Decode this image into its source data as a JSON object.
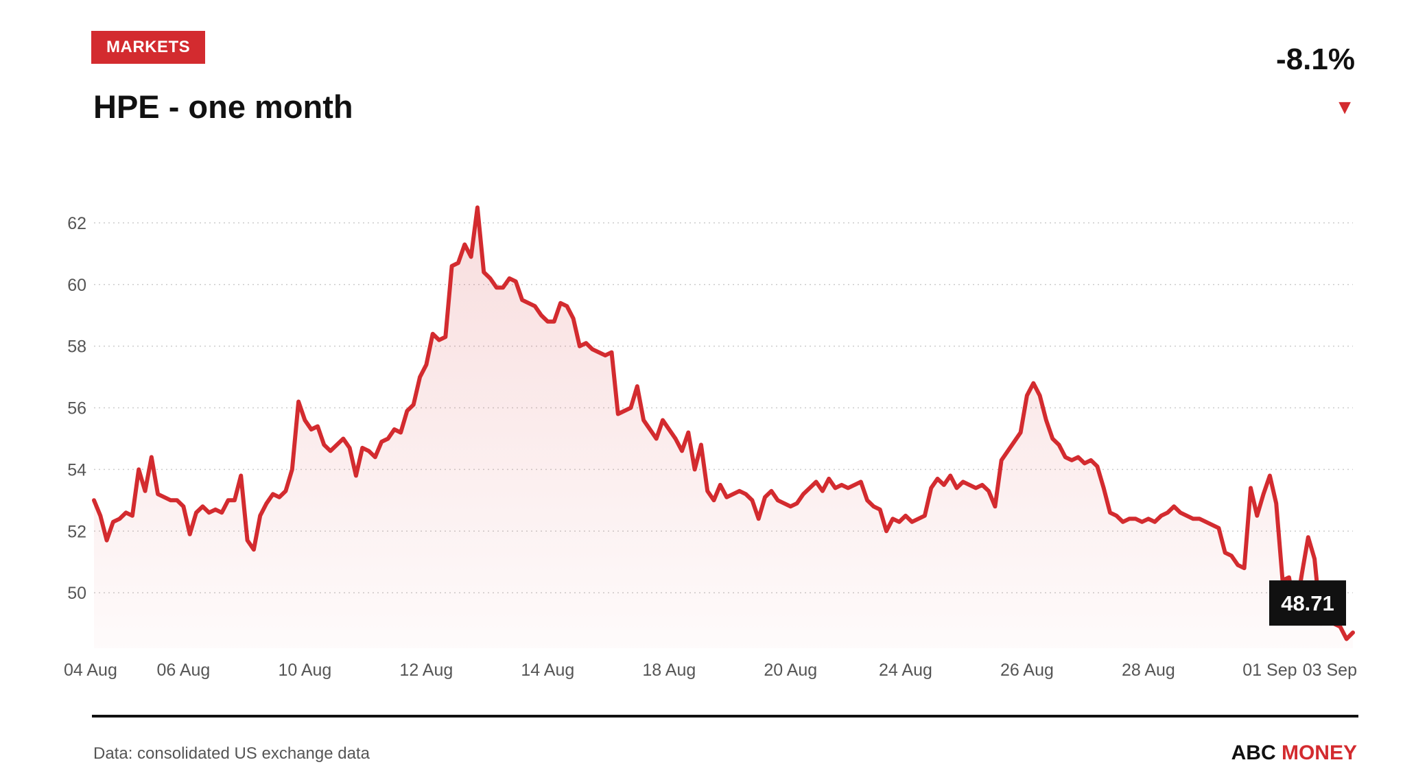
{
  "header": {
    "badge": "MARKETS",
    "title": "HPE - one month",
    "change": "-8.1%",
    "change_direction_icon": "down-triangle-icon"
  },
  "footer": {
    "source": "Data: consolidated US exchange data",
    "brand_part1": "ABC",
    "brand_part2": "MONEY"
  },
  "colors": {
    "accent": "#d32b2f",
    "text": "#111111",
    "grid": "#cccccc",
    "tooltip_bg": "#111111",
    "tooltip_text": "#ffffff"
  },
  "chart_data": {
    "type": "area",
    "title": "HPE - one month",
    "xlabel": "",
    "ylabel": "",
    "ylim": [
      48.2,
      63
    ],
    "yticks": [
      50,
      52,
      54,
      56,
      58,
      60,
      62
    ],
    "xticks": [
      {
        "label": "04 Aug",
        "i": 0
      },
      {
        "label": "06 Aug",
        "i": 14
      },
      {
        "label": "10 Aug",
        "i": 33
      },
      {
        "label": "12 Aug",
        "i": 52
      },
      {
        "label": "14 Aug",
        "i": 71
      },
      {
        "label": "18 Aug",
        "i": 90
      },
      {
        "label": "20 Aug",
        "i": 109
      },
      {
        "label": "24 Aug",
        "i": 127
      },
      {
        "label": "26 Aug",
        "i": 146
      },
      {
        "label": "28 Aug",
        "i": 165
      },
      {
        "label": "01 Sep",
        "i": 184
      },
      {
        "label": "03 Sep",
        "i": 205
      }
    ],
    "grid": true,
    "last_value_label": "48.71",
    "series": [
      {
        "values": [
          53.0,
          52.5,
          51.7,
          52.3,
          52.4,
          52.6,
          52.5,
          54.0,
          53.3,
          54.4,
          53.2,
          53.1,
          53.0,
          53.0,
          52.8,
          51.9,
          52.6,
          52.8,
          52.6,
          52.7,
          52.6,
          53.0,
          53.0,
          53.8,
          51.7,
          51.4,
          52.5,
          52.9,
          53.2,
          53.1,
          53.3,
          54.0,
          56.2,
          55.6,
          55.3,
          55.4,
          54.8,
          54.6,
          54.8,
          55.0,
          54.7,
          53.8,
          54.7,
          54.6,
          54.4,
          54.9,
          55.0,
          55.3,
          55.2,
          55.9,
          56.1,
          57.0,
          57.4,
          58.4,
          58.2,
          58.3,
          60.6,
          60.7,
          61.3,
          60.9,
          62.5,
          60.4,
          60.2,
          59.9,
          59.9,
          60.2,
          60.1,
          59.5,
          59.4,
          59.3,
          59.0,
          58.8,
          58.8,
          59.4,
          59.3,
          58.9,
          58.0,
          58.1,
          57.9,
          57.8,
          57.7,
          57.8,
          55.8,
          55.9,
          56.0,
          56.7,
          55.6,
          55.3,
          55.0,
          55.6,
          55.3,
          55.0,
          54.6,
          55.2,
          54.0,
          54.8,
          53.3,
          53.0,
          53.5,
          53.1,
          53.2,
          53.3,
          53.2,
          53.0,
          52.4,
          53.1,
          53.3,
          53.0,
          52.9,
          52.8,
          52.9,
          53.2,
          53.4,
          53.6,
          53.3,
          53.7,
          53.4,
          53.5,
          53.4,
          53.5,
          53.6,
          53.0,
          52.8,
          52.7,
          52.0,
          52.4,
          52.3,
          52.5,
          52.3,
          52.4,
          52.5,
          53.4,
          53.7,
          53.5,
          53.8,
          53.4,
          53.6,
          53.5,
          53.4,
          53.5,
          53.3,
          52.8,
          54.3,
          54.6,
          54.9,
          55.2,
          56.4,
          56.8,
          56.4,
          55.6,
          55.0,
          54.8,
          54.4,
          54.3,
          54.4,
          54.2,
          54.3,
          54.1,
          53.4,
          52.6,
          52.5,
          52.3,
          52.4,
          52.4,
          52.3,
          52.4,
          52.3,
          52.5,
          52.6,
          52.8,
          52.6,
          52.5,
          52.4,
          52.4,
          52.3,
          52.2,
          52.1,
          51.3,
          51.2,
          50.9,
          50.8,
          53.4,
          52.5,
          53.2,
          53.8,
          52.9,
          50.4,
          50.5,
          49.3,
          50.6,
          51.8,
          51.1,
          49.0,
          49.5,
          49.0,
          48.9,
          48.5,
          48.71
        ]
      }
    ]
  }
}
